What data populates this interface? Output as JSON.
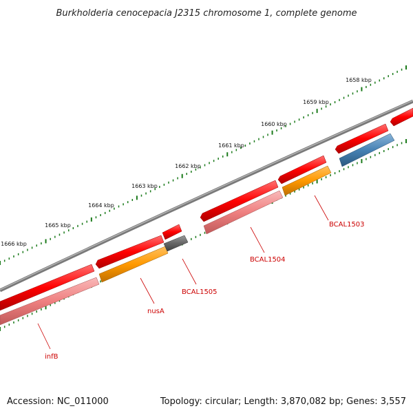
{
  "title": "Burkholderia cenocepacia J2315 chromosome 1, complete genome",
  "accession": "Accession: NC_011000",
  "summary": "Topology: circular; Length: 3,870,082 bp; Genes: 3,557",
  "colors": {
    "backbone": "#7a7a7a",
    "tick": "#1a7a1a",
    "label": "#cc0000",
    "cds_red": "#ff0000",
    "cds_pink": "#f08080",
    "cds_orange": "#ff9900",
    "cds_gray": "#666666",
    "cds_blue": "#4682b4"
  },
  "ruler": [
    "1658 kbp",
    "1659 kbp",
    "1660 kbp",
    "1661 kbp",
    "1662 kbp",
    "1663 kbp",
    "1664 kbp",
    "1665 kbp",
    "1666 kbp"
  ],
  "gene_labels": [
    "BCAL1503",
    "BCAL1504",
    "BCAL1505",
    "nusA",
    "infB"
  ]
}
